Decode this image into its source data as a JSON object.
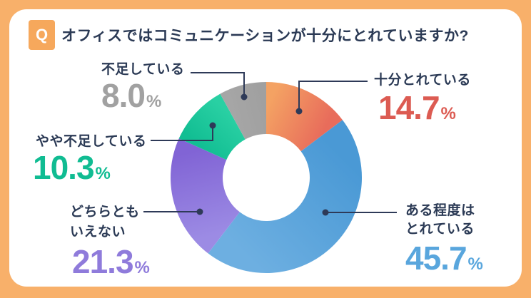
{
  "page": {
    "bg_color": "#F8B06A",
    "card_color": "#FFFFFF"
  },
  "header": {
    "badge": "Q",
    "badge_color": "#F6A85C",
    "title": "オフィスではコミュニケーションが十分にとれていますか?",
    "title_color": "#2B3A55"
  },
  "chart_data": {
    "type": "pie",
    "subtype": "donut",
    "title": "オフィスではコミュニケーションが十分にとれていますか?",
    "unit": "%",
    "start_angle": "top",
    "direction": "clockwise",
    "total": 100,
    "leader_line_color": "#2E3A58",
    "segments": [
      {
        "label": "十分とれている",
        "label_lines": [
          "十分とれている"
        ],
        "value": 14.7,
        "display": "14.7",
        "color": "#F4A263",
        "color2": "#E86C5B",
        "value_color": "#DC5B52"
      },
      {
        "label": "ある程度はとれている",
        "label_lines": [
          "ある程度は",
          "とれている"
        ],
        "value": 45.7,
        "display": "45.7",
        "color": "#4A99D5",
        "color2": "#6DAFE1",
        "value_color": "#59A6DD"
      },
      {
        "label": "どちらともいえない",
        "label_lines": [
          "どちらとも",
          "いえない"
        ],
        "value": 21.3,
        "display": "21.3",
        "color": "#9C8BE4",
        "color2": "#8164D5",
        "value_color": "#8F7BDB"
      },
      {
        "label": "やや不足している",
        "label_lines": [
          "やや不足している"
        ],
        "value": 10.3,
        "display": "10.3",
        "color": "#12BE93",
        "color2": "#29D0A3",
        "value_color": "#10BC92"
      },
      {
        "label": "不足している",
        "label_lines": [
          "不足している"
        ],
        "value": 8.0,
        "display": "8.0",
        "color": "#A6A6A6",
        "color2": "#A0A0A0",
        "value_color": "#A1A1A1"
      }
    ]
  }
}
